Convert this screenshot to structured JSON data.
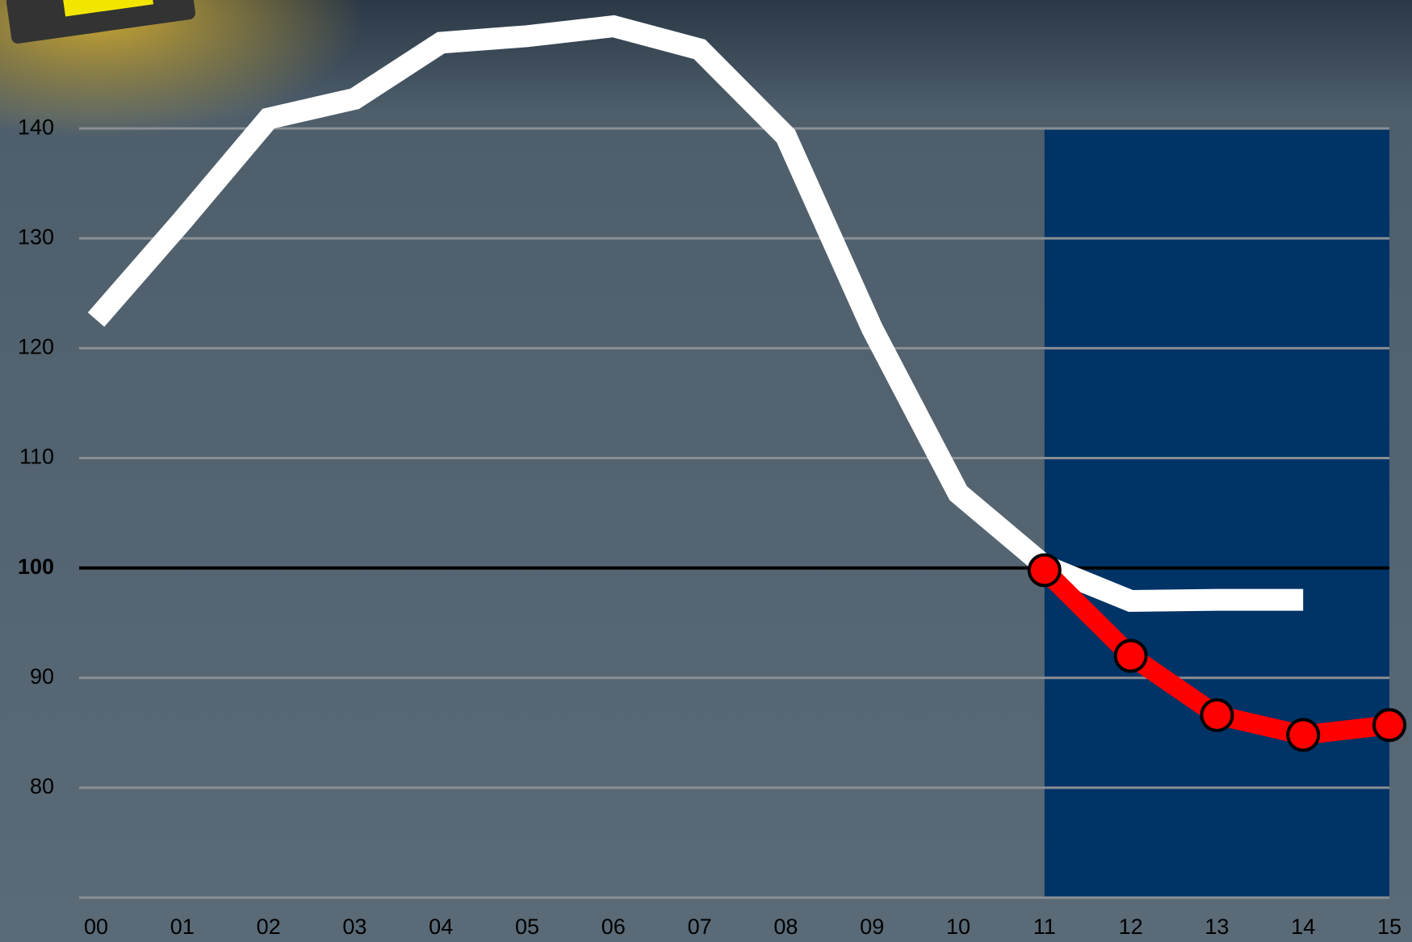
{
  "chart_data": {
    "type": "line",
    "categories": [
      "00",
      "01",
      "02",
      "03",
      "04",
      "05",
      "06",
      "07",
      "08",
      "09",
      "10",
      "11",
      "12",
      "13",
      "14",
      "15"
    ],
    "series": [
      {
        "color": "#ffffff",
        "values": [
          122.6,
          131.6,
          140.9,
          142.7,
          147.8,
          148.4,
          149.3,
          147.2,
          139.3,
          121.8,
          106.8,
          100.2,
          97.0,
          97.1,
          97.1,
          null
        ]
      },
      {
        "color": "#ff0000",
        "markers": true,
        "values": [
          null,
          null,
          null,
          null,
          null,
          null,
          null,
          null,
          null,
          null,
          null,
          99.8,
          92.0,
          86.6,
          84.8,
          85.7
        ]
      }
    ],
    "ylim": [
      70,
      150
    ],
    "yticks": [
      80,
      90,
      100,
      110,
      120,
      130,
      140
    ],
    "grid": true,
    "reference_line": 100,
    "shade": {
      "from": "11",
      "to": "15",
      "top": 140,
      "color": "#003366"
    }
  }
}
